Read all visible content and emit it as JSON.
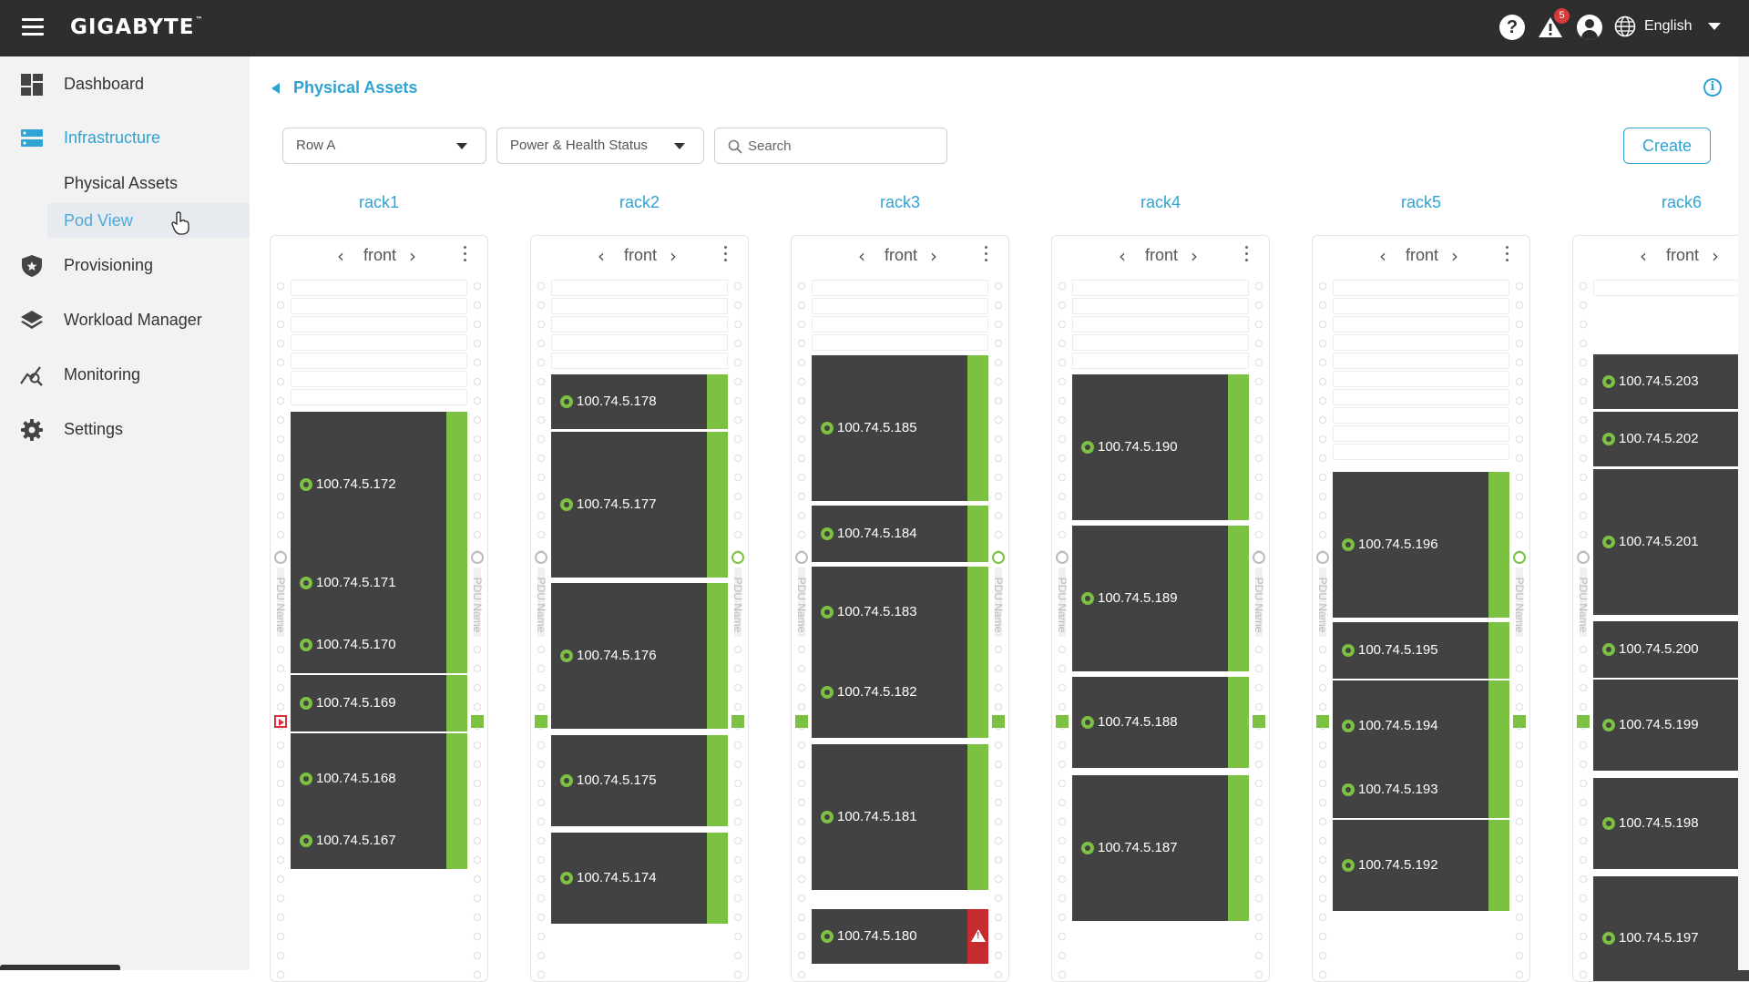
{
  "header": {
    "brand": "GIGABYTE",
    "brand_tm": "™",
    "alert_count": "5",
    "language": "English",
    "icons": [
      "menu-icon",
      "help-icon",
      "alert-icon",
      "user-icon",
      "globe-icon"
    ]
  },
  "sidebar": {
    "items": [
      {
        "label": "Dashboard",
        "icon": "dashboard-icon"
      },
      {
        "label": "Infrastructure",
        "icon": "infrastructure-icon",
        "active": true
      },
      {
        "label": "Provisioning",
        "icon": "shield-icon"
      },
      {
        "label": "Workload Manager",
        "icon": "layers-icon"
      },
      {
        "label": "Monitoring",
        "icon": "monitoring-icon"
      },
      {
        "label": "Settings",
        "icon": "gear-icon"
      }
    ],
    "sub_items": [
      {
        "label": "Physical Assets"
      },
      {
        "label": "Pod View",
        "selected": true
      }
    ]
  },
  "main": {
    "breadcrumb": "Physical Assets",
    "filters": {
      "row_select": "Row A",
      "status_select": "Power & Health Status",
      "search_placeholder": "Search"
    },
    "create_label": "Create",
    "pdu_label": "PDU Name",
    "racks": [
      {
        "name": "rack1",
        "face": "front",
        "servers": [
          "100.74.5.172",
          "100.74.5.171",
          "100.74.5.170",
          "100.74.5.169",
          "100.74.5.168",
          "100.74.5.167"
        ]
      },
      {
        "name": "rack2",
        "face": "front",
        "servers": [
          "100.74.5.178",
          "100.74.5.177",
          "100.74.5.176",
          "100.74.5.175",
          "100.74.5.174"
        ]
      },
      {
        "name": "rack3",
        "face": "front",
        "servers": [
          "100.74.5.185",
          "100.74.5.184",
          "100.74.5.183",
          "100.74.5.182",
          "100.74.5.181",
          "100.74.5.180"
        ]
      },
      {
        "name": "rack4",
        "face": "front",
        "servers": [
          "100.74.5.190",
          "100.74.5.189",
          "100.74.5.188",
          "100.74.5.187"
        ]
      },
      {
        "name": "rack5",
        "face": "front",
        "servers": [
          "100.74.5.196",
          "100.74.5.195",
          "100.74.5.194",
          "100.74.5.193",
          "100.74.5.192"
        ]
      },
      {
        "name": "rack6",
        "face": "front",
        "servers": [
          "100.74.5.203",
          "100.74.5.202",
          "100.74.5.201",
          "100.74.5.200",
          "100.74.5.199",
          "100.74.5.198",
          "100.74.5.197"
        ]
      }
    ],
    "colors": {
      "accent": "#2ea3d4",
      "ok": "#7cc142",
      "alert": "#c62b30",
      "server": "#424242"
    }
  }
}
